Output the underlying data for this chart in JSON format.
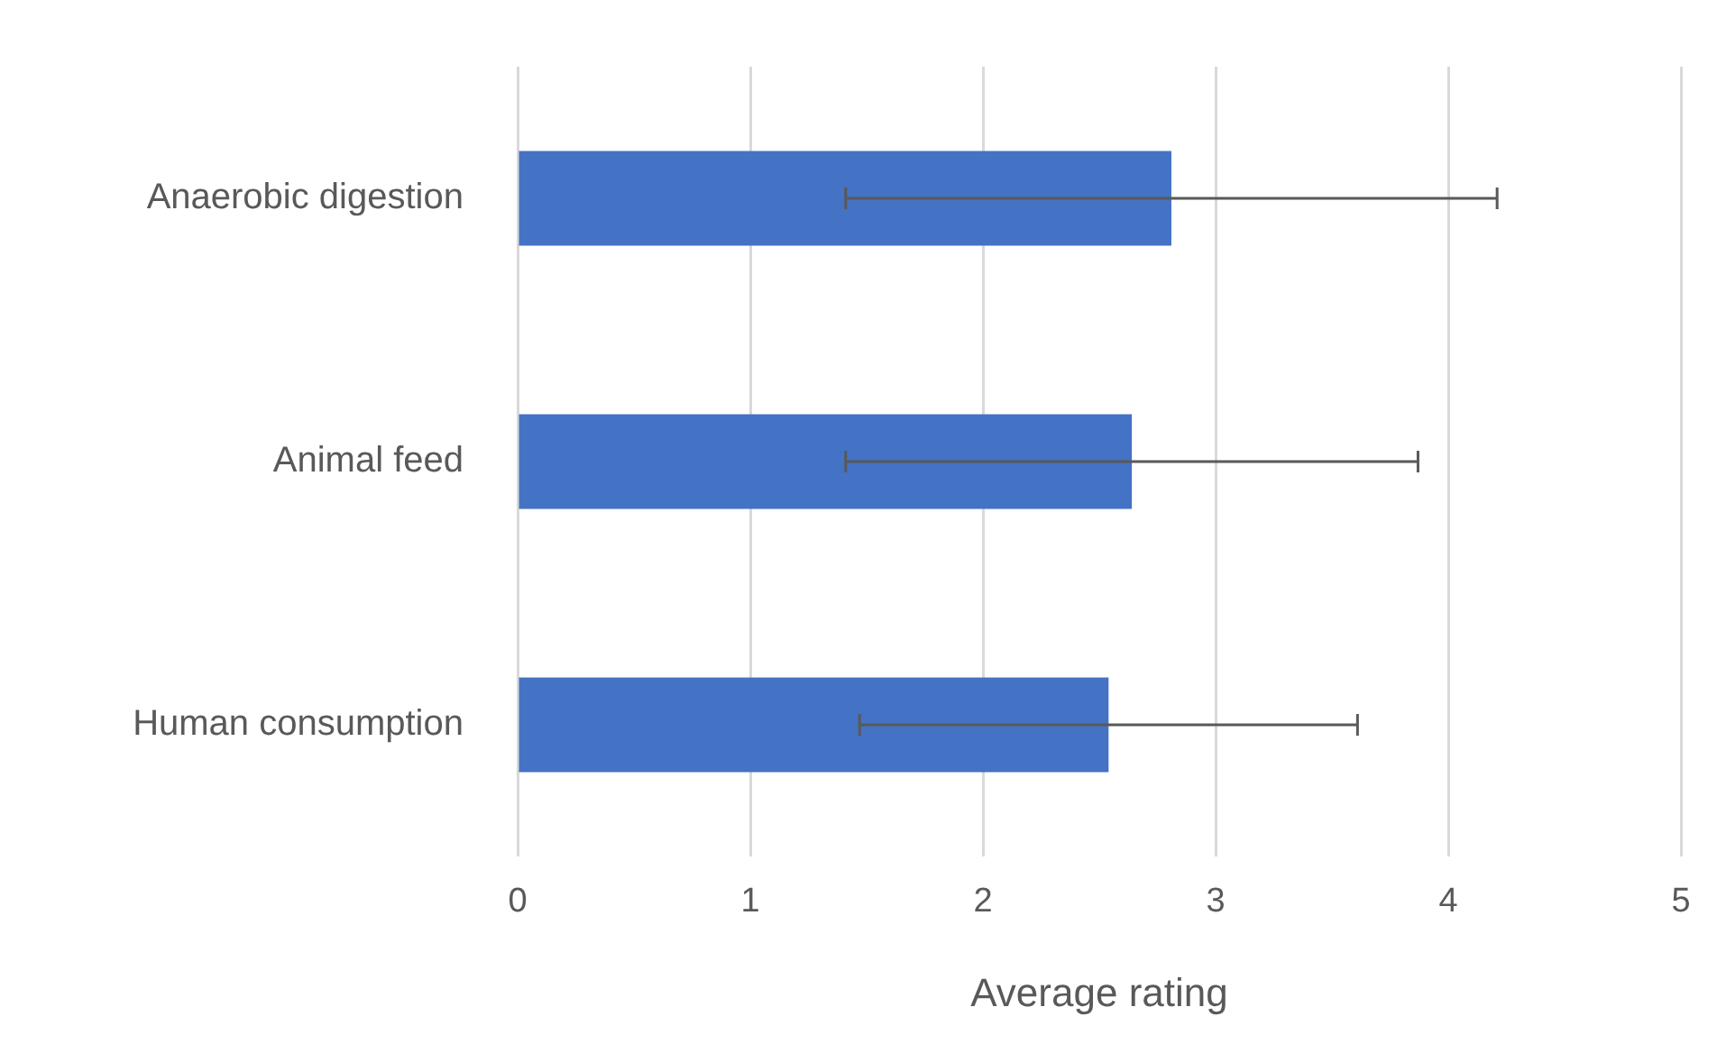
{
  "chart_data": {
    "type": "bar",
    "orientation": "horizontal",
    "xlabel": "Average rating",
    "categories": [
      "Anaerobic digestion",
      "Animal feed",
      "Human consumption"
    ],
    "values": [
      2.81,
      2.64,
      2.54
    ],
    "errors": [
      1.4,
      1.23,
      1.07
    ],
    "color": "#4472c4",
    "xlim": [
      0,
      5
    ],
    "xticks": [
      0,
      1,
      2,
      3,
      4,
      5
    ],
    "grid": "x",
    "legend": false
  }
}
